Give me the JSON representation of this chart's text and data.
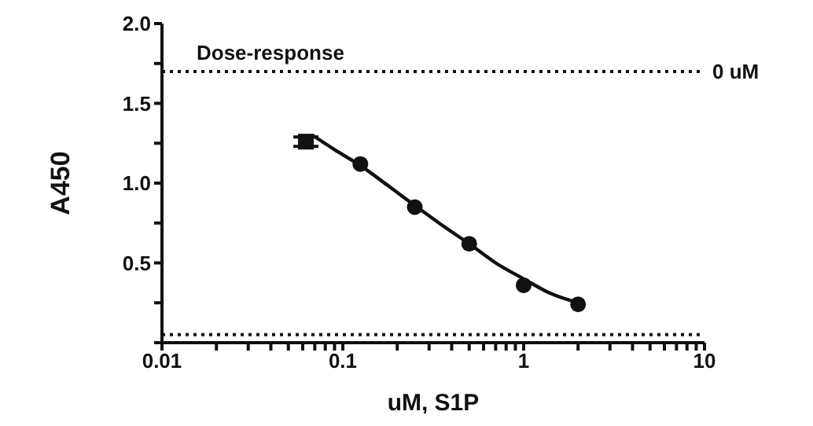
{
  "chart_data": {
    "type": "scatter",
    "title": "Dose-response",
    "xlabel": "uM, S1P",
    "ylabel": "A450",
    "log": "x",
    "legend": false,
    "xlim": [
      0.01,
      10
    ],
    "ylim": [
      0,
      2
    ],
    "xticks": [
      0.01,
      {
        "value": 0.02,
        "label": null
      },
      {
        "value": 0.03,
        "label": null
      },
      {
        "value": 0.04,
        "label": null
      },
      {
        "value": 0.05,
        "label": null
      },
      {
        "value": 0.06,
        "label": null
      },
      {
        "value": 0.07,
        "label": null
      },
      {
        "value": 0.08,
        "label": null
      },
      {
        "value": 0.09,
        "label": null
      },
      0.1,
      {
        "value": 0.2,
        "label": null
      },
      {
        "value": 0.3,
        "label": null
      },
      {
        "value": 0.4,
        "label": null
      },
      {
        "value": 0.5,
        "label": null
      },
      {
        "value": 0.6,
        "label": null
      },
      {
        "value": 0.7,
        "label": null
      },
      {
        "value": 0.8,
        "label": null
      },
      {
        "value": 0.9,
        "label": null
      },
      1,
      {
        "value": 2,
        "label": null
      },
      {
        "value": 3,
        "label": null
      },
      {
        "value": 4,
        "label": null
      },
      {
        "value": 5,
        "label": null
      },
      {
        "value": 6,
        "label": null
      },
      {
        "value": 7,
        "label": null
      },
      {
        "value": 8,
        "label": null
      },
      {
        "value": 9,
        "label": null
      },
      10
    ],
    "yticks": [
      {
        "value": 0,
        "label": null
      },
      {
        "value": 0.25,
        "label": null
      },
      0.5,
      {
        "value": 0.75,
        "label": null
      },
      {
        "value": 1,
        "label": "1.0"
      },
      {
        "value": 1.25,
        "label": null
      },
      1.5,
      {
        "value": 1.75,
        "label": null
      },
      {
        "value": 2,
        "label": "2.0"
      }
    ],
    "series": [
      {
        "marker": "square",
        "color": "#111111",
        "x": [
          0.0625
        ],
        "values": [
          1.26
        ],
        "errors": [
          0.03
        ]
      },
      {
        "marker": "circle",
        "color": "#111111",
        "x": [
          0.125,
          0.25,
          0.5,
          1,
          2
        ],
        "values": [
          1.12,
          0.85,
          0.62,
          0.36,
          0.24
        ]
      },
      {
        "type": "line",
        "marker": "none",
        "line_style": "solid",
        "color": "#111111",
        "x": [
          0.068,
          0.09,
          0.125,
          0.18,
          0.25,
          0.35,
          0.5,
          0.7,
          1,
          1.4,
          2
        ],
        "values": [
          1.3,
          1.21,
          1.11,
          0.98,
          0.86,
          0.74,
          0.62,
          0.5,
          0.4,
          0.31,
          0.25
        ]
      }
    ],
    "ref_lines": [
      {
        "axis": "y",
        "value": 1.7,
        "label": "0 uM",
        "line_style": "dotted",
        "color": "#111111"
      },
      {
        "axis": "y",
        "value": 0.05,
        "label": null,
        "line_style": "dotted",
        "color": "#111111"
      }
    ]
  }
}
